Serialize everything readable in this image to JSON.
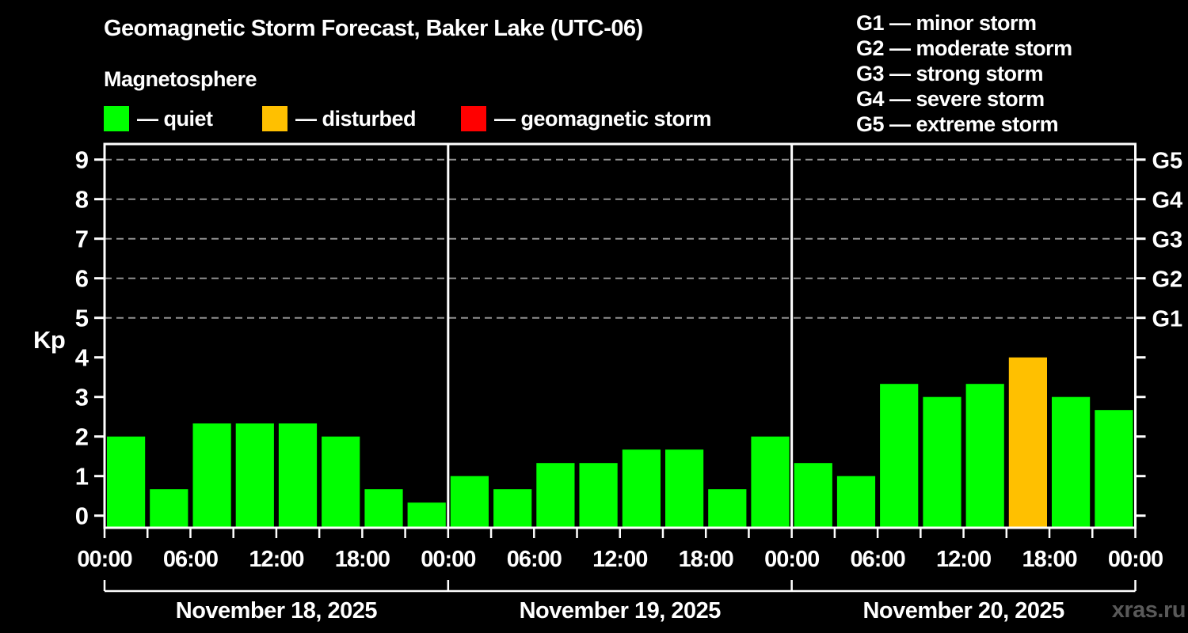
{
  "header": {
    "title": "Geomagnetic Storm Forecast, Baker Lake (UTC-06)",
    "subtitle": "Magnetosphere"
  },
  "legend": {
    "items": [
      {
        "name": "quiet",
        "label": "— quiet",
        "color": "#00ff00"
      },
      {
        "name": "disturbed",
        "label": "— disturbed",
        "color": "#ffc000"
      },
      {
        "name": "geomagnetic-storm",
        "label": "— geomagnetic storm",
        "color": "#ff0000"
      }
    ]
  },
  "g_legend": [
    "G1 — minor storm",
    "G2 — moderate storm",
    "G3 — strong storm",
    "G4 — severe storm",
    "G5 — extreme storm"
  ],
  "watermark": "xras.ru",
  "chart_data": {
    "type": "bar",
    "title": "Geomagnetic Storm Forecast, Baker Lake (UTC-06)",
    "subtitle": "Magnetosphere",
    "ylabel": "Kp",
    "xlabel": "",
    "ylim": [
      0,
      9
    ],
    "yticks": [
      0,
      1,
      2,
      3,
      4,
      5,
      6,
      7,
      8,
      9
    ],
    "gridlines_kp": [
      5,
      6,
      7,
      8,
      9
    ],
    "grid": "dashed-horizontal-at-storm-levels",
    "legend_position": "top",
    "g_ticks": [
      {
        "kp": 5,
        "label": "G1"
      },
      {
        "kp": 6,
        "label": "G2"
      },
      {
        "kp": 7,
        "label": "G3"
      },
      {
        "kp": 8,
        "label": "G4"
      },
      {
        "kp": 9,
        "label": "G5"
      }
    ],
    "interval_hours": 3,
    "bars_per_day": 8,
    "time_labels": [
      "00:00",
      "06:00",
      "12:00",
      "18:00",
      "00:00",
      "06:00",
      "12:00",
      "18:00",
      "00:00",
      "06:00",
      "12:00",
      "18:00",
      "00:00"
    ],
    "days": [
      {
        "date": "November 18, 2025",
        "values": [
          2.0,
          0.67,
          2.33,
          2.33,
          2.33,
          2.0,
          0.67,
          0.33
        ],
        "status": [
          "quiet",
          "quiet",
          "quiet",
          "quiet",
          "quiet",
          "quiet",
          "quiet",
          "quiet"
        ]
      },
      {
        "date": "November 19, 2025",
        "values": [
          1.0,
          0.67,
          1.33,
          1.33,
          1.67,
          1.67,
          0.67,
          2.0
        ],
        "status": [
          "quiet",
          "quiet",
          "quiet",
          "quiet",
          "quiet",
          "quiet",
          "quiet",
          "quiet"
        ]
      },
      {
        "date": "November 20, 2025",
        "values": [
          1.33,
          1.0,
          3.33,
          3.0,
          3.33,
          4.0,
          3.0,
          2.67
        ],
        "status": [
          "quiet",
          "quiet",
          "quiet",
          "quiet",
          "quiet",
          "disturbed",
          "quiet",
          "quiet"
        ]
      }
    ],
    "status_colors": {
      "quiet": "#00ff00",
      "disturbed": "#ffc000",
      "storm": "#ff0000"
    },
    "frame_color": "#ffffff",
    "grid_color": "#909090",
    "text_color": "#ffffff",
    "background_color": "#000000"
  }
}
